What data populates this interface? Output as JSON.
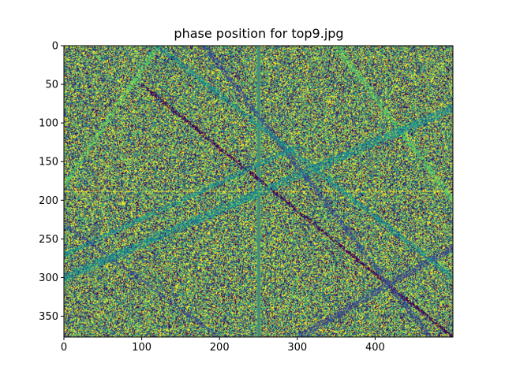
{
  "chart_data": {
    "type": "heatmap",
    "title": "phase position for top9.jpg",
    "xlabel": "",
    "ylabel": "",
    "image_width": 500,
    "image_height": 377,
    "xlim": [
      0,
      500
    ],
    "ylim": [
      377,
      0
    ],
    "x_ticks": [
      "0",
      "100",
      "200",
      "300",
      "400"
    ],
    "y_ticks": [
      "0",
      "50",
      "100",
      "150",
      "200",
      "250",
      "300",
      "350"
    ],
    "colormap": [
      "#440154",
      "#3b528b",
      "#21918c",
      "#5ec962",
      "#fde725"
    ],
    "grid": false,
    "legend": "none"
  }
}
